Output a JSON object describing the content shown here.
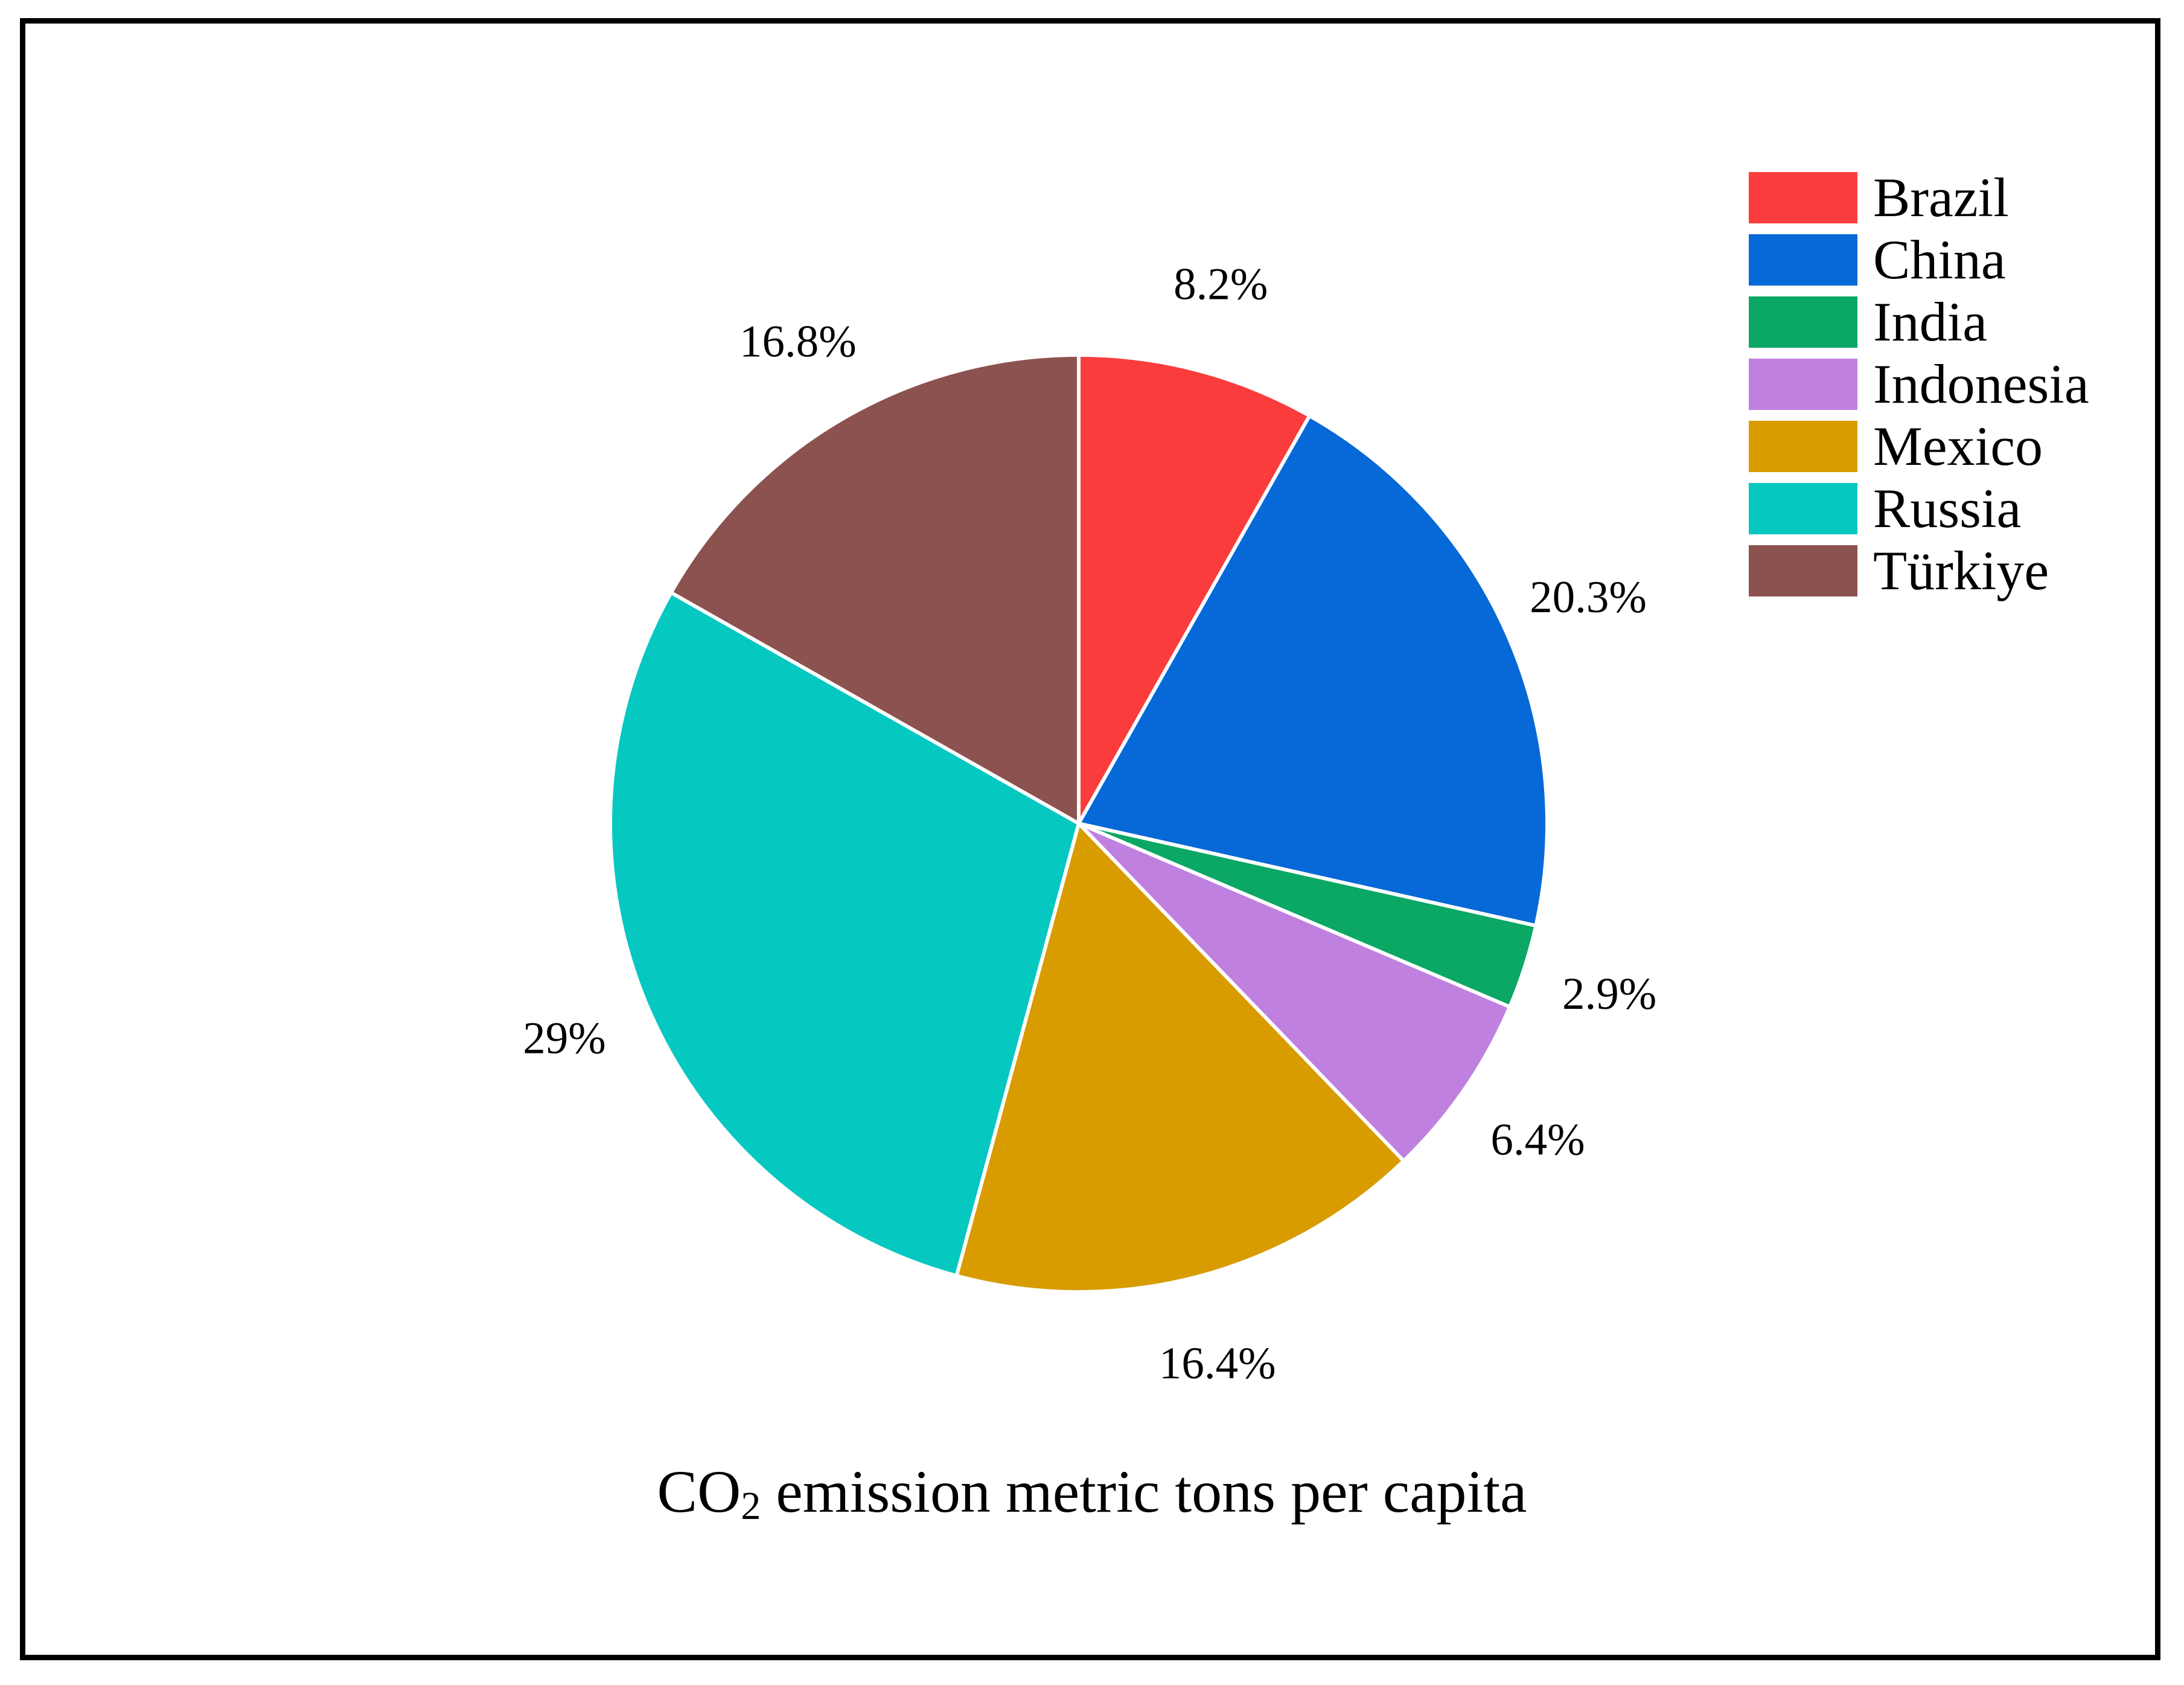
{
  "chart_data": {
    "type": "pie",
    "title_parts": {
      "prefix": "CO",
      "subscript": "2",
      "suffix": " emission metric tons per capita"
    },
    "slices": [
      {
        "label": "Brazil",
        "value": 8.2,
        "pct_label": "8.2%",
        "color": "#fa3c3c"
      },
      {
        "label": "China",
        "value": 20.3,
        "pct_label": "20.3%",
        "color": "#0769d7"
      },
      {
        "label": "India",
        "value": 2.9,
        "pct_label": "2.9%",
        "color": "#0aa765"
      },
      {
        "label": "Indonesia",
        "value": 6.4,
        "pct_label": "6.4%",
        "color": "#c080e0"
      },
      {
        "label": "Mexico",
        "value": 16.4,
        "pct_label": "16.4%",
        "color": "#d89b00"
      },
      {
        "label": "Russia",
        "value": 29,
        "pct_label": "29%",
        "color": "#05c8c1"
      },
      {
        "label": "Türkiye",
        "value": 16.8,
        "pct_label": "16.8%",
        "color": "#8c5250"
      }
    ],
    "start_angle": "12-oclock",
    "direction": "clockwise",
    "legend_position": "upper right",
    "separator_color": "#ffffff",
    "text_color": "#000000",
    "frame_color": "#000000",
    "background_color": "#ffffff"
  }
}
